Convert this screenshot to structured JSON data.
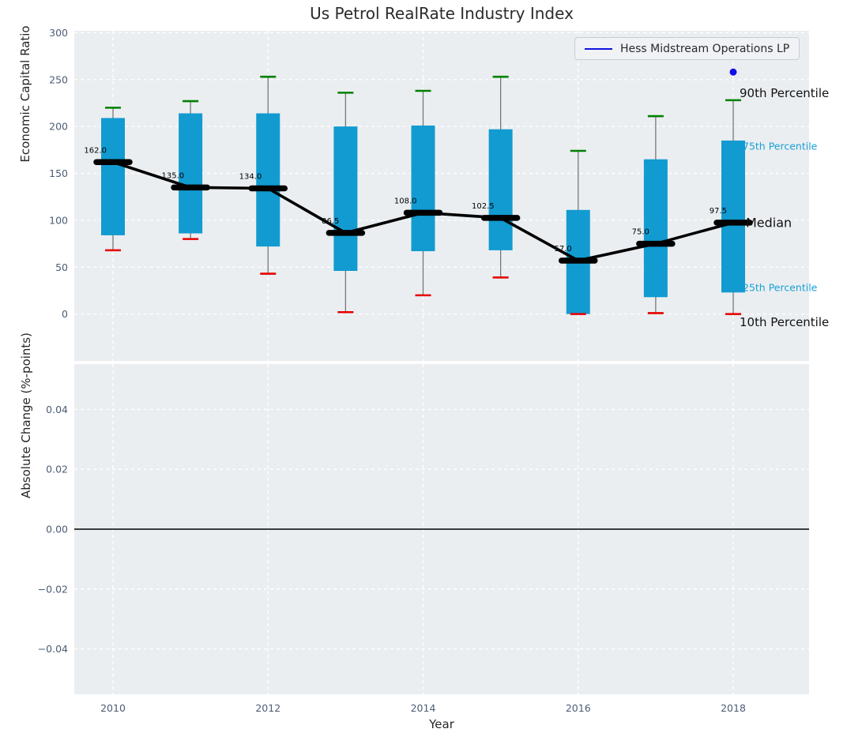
{
  "title": "Us Petrol RealRate Industry Index",
  "legend": {
    "label": "Hess Midstream Operations LP",
    "line_color": "#1212e0"
  },
  "axes": {
    "top": {
      "ylabel": "Economic Capital Ratio",
      "ytick_labels": [
        "0",
        "50",
        "100",
        "150",
        "200",
        "250",
        "300"
      ],
      "ytick_values": [
        0,
        50,
        100,
        150,
        200,
        250,
        300
      ],
      "ylim": [
        -50,
        302
      ]
    },
    "bottom": {
      "ylabel": "Absolute Change (%-points)",
      "ytick_labels": [
        "0.04",
        "0.02",
        "0.00",
        "−0.02",
        "−0.04"
      ],
      "ytick_values": [
        0.04,
        0.02,
        0.0,
        -0.02,
        -0.04
      ],
      "ylim": [
        -0.055,
        0.055
      ],
      "zero_line_value": 0.0
    },
    "xlabel": "Year",
    "xtick_labels": [
      "2010",
      "2012",
      "2014",
      "2016",
      "2018"
    ],
    "xtick_values": [
      2010,
      2012,
      2014,
      2016,
      2018
    ]
  },
  "annotations": {
    "p90": "90th Percentile",
    "p75": "75th Percentile",
    "median": "Median",
    "p25": "25th Percentile",
    "p10": "10th Percentile"
  },
  "chart_data": {
    "type": "box-percentile-timeseries",
    "title": "Us Petrol RealRate Industry Index",
    "xlabel": "Year",
    "top_ylabel": "Economic Capital Ratio",
    "bottom_ylabel": "Absolute Change (%-points)",
    "years": [
      2010,
      2011,
      2012,
      2013,
      2014,
      2015,
      2016,
      2017,
      2018
    ],
    "series": [
      {
        "name": "90th Percentile",
        "values": [
          220,
          227,
          253,
          236,
          238,
          253,
          174,
          211,
          228
        ]
      },
      {
        "name": "75th Percentile",
        "values": [
          209,
          214,
          214,
          200,
          201,
          197,
          111,
          165,
          185
        ]
      },
      {
        "name": "Median",
        "values": [
          162,
          135,
          134,
          86.5,
          108,
          102.5,
          57,
          75,
          97.5
        ]
      },
      {
        "name": "25th Percentile",
        "values": [
          84,
          86,
          72,
          46,
          67,
          68,
          0,
          18,
          23
        ]
      },
      {
        "name": "10th Percentile",
        "values": [
          68,
          80,
          43,
          2,
          20,
          39,
          0,
          1,
          0
        ]
      }
    ],
    "median_labels": [
      "162.0",
      "135.0",
      "134.0",
      "86.5",
      "108.0",
      "102.5",
      "57.0",
      "75.0",
      "97.5"
    ],
    "hess_point": {
      "name": "Hess Midstream Operations LP",
      "year": 2018,
      "value": 258
    },
    "bottom_panel": {
      "data": [],
      "zero_line": 0.0
    },
    "legend_position": "upper right",
    "grid": true,
    "colors": {
      "box": "#119bd0",
      "p90_cap": "#008000",
      "p10_cap": "#e60000",
      "median": "#000000",
      "whisker": "#777777",
      "hess": "#1010e6",
      "plot_bg": "#ebeef1",
      "grid": "#ffffff",
      "tick_text": "#4c5d75",
      "annotation_cyan": "#189fd6"
    }
  }
}
